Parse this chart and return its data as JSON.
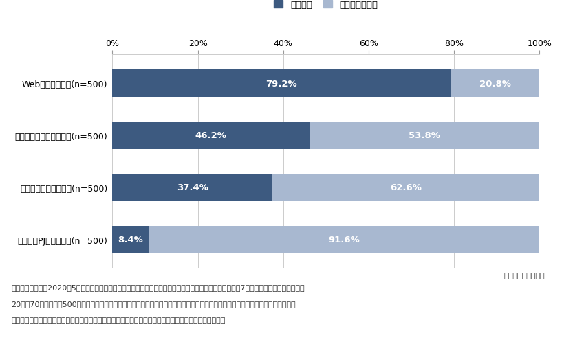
{
  "categories": [
    "Web会議システム(n=500)",
    "ビジネスチャットツール(n=500)",
    "オンラインストレージ(n=500)",
    "タスク・PJ管理ツール(n=500)"
  ],
  "used": [
    79.2,
    46.2,
    37.4,
    8.4
  ],
  "not_used": [
    20.8,
    53.8,
    62.6,
    91.6
  ],
  "color_used": "#3d5a80",
  "color_not_used": "#a8b8d0",
  "legend_used": "利用した",
  "legend_not_used": "利用しなかった",
  "source_text": "矢野経済研究所調べ",
  "note_line1": "注１．調査時期：2020年5月、調査対象：東京都、神奈川県、埼玉県、千葉県、大阪府、兵庫県、福岡県の7都府県のオフィスに勤務する",
  "note_line2": "20歳～70歳代の男女500人（自社がテレワーク実施中あるいは自身がテレワーク勤務中の経営者、または自身がテレワーク勤務中の",
  "note_line3": "マネジメント層および一般社員）を対象とした。　調査方法：インターネットアンケート調査、単数回答",
  "background_color": "#ffffff",
  "bar_height": 0.52,
  "label_fontsize": 9.5,
  "tick_fontsize": 9,
  "legend_fontsize": 9.5,
  "note_fontsize": 8,
  "source_fontsize": 8
}
